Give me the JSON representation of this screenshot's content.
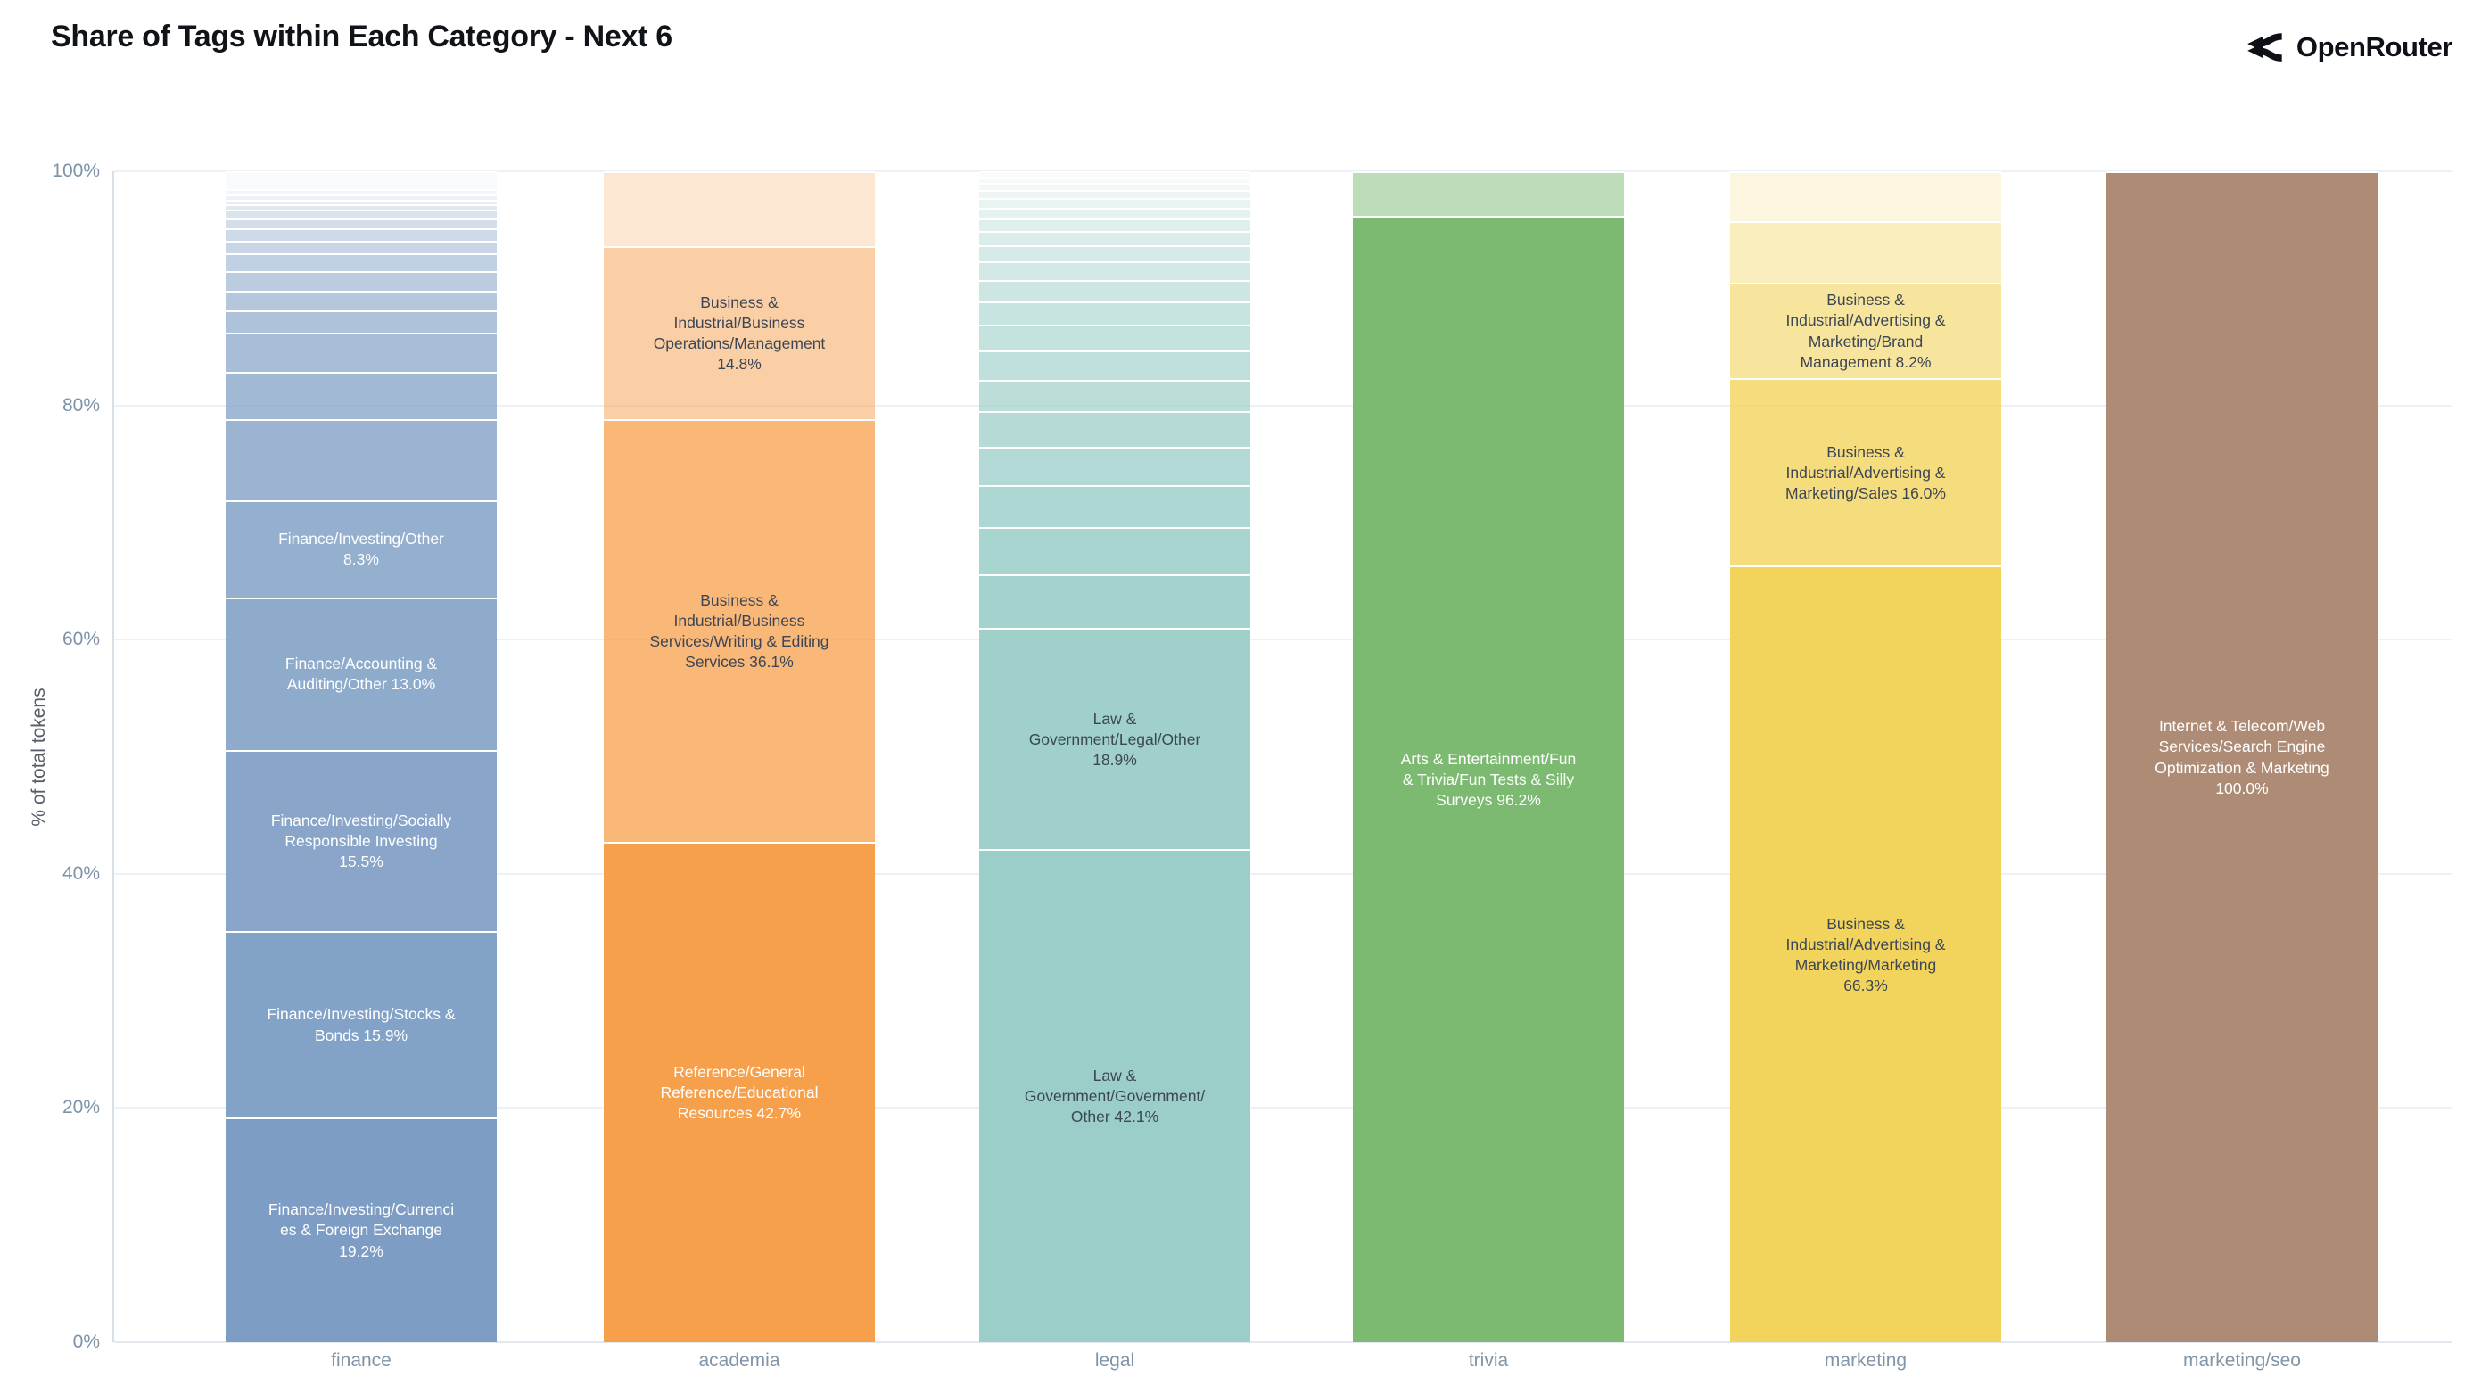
{
  "header": {
    "title": "Share of Tags within Each Category - Next 6",
    "brand": "OpenRouter"
  },
  "chart_data": {
    "type": "bar",
    "variant": "stacked-percent-column",
    "title": "Share of Tags within Each Category - Next 6",
    "xlabel": "",
    "ylabel": "% of total tokens",
    "ylim": [
      0,
      100
    ],
    "yticks": [
      {
        "value": 0,
        "label": "0%"
      },
      {
        "value": 20,
        "label": "20%"
      },
      {
        "value": 40,
        "label": "40%"
      },
      {
        "value": 60,
        "label": "60%"
      },
      {
        "value": 80,
        "label": "80%"
      },
      {
        "value": 100,
        "label": "100%"
      }
    ],
    "grid": true,
    "legend": "none",
    "categories": [
      "finance",
      "academia",
      "legal",
      "trivia",
      "marketing",
      "marketing/seo"
    ],
    "bars": [
      {
        "category": "finance",
        "color": "#7d9dc4",
        "segments": [
          {
            "value": 19.2,
            "label": "Finance/Investing/Currencies & Foreign Exchange 19.2%",
            "label_color": "#ffffff"
          },
          {
            "value": 15.9,
            "label": "Finance/Investing/Stocks & Bonds 15.9%",
            "label_color": "#ffffff"
          },
          {
            "value": 15.5,
            "label": "Finance/Investing/Socially Responsible Investing 15.5%",
            "label_color": "#ffffff"
          },
          {
            "value": 13.0,
            "label": "Finance/Accounting & Auditing/Other 13.0%",
            "label_color": "#ffffff"
          },
          {
            "value": 8.3,
            "label": "Finance/Investing/Other 8.3%",
            "label_color": "#ffffff"
          },
          {
            "value": 6.9,
            "label": ""
          },
          {
            "value": 4.1,
            "label": ""
          },
          {
            "value": 3.3,
            "label": ""
          },
          {
            "value": 1.9,
            "label": ""
          },
          {
            "value": 1.7,
            "label": ""
          },
          {
            "value": 1.7,
            "label": ""
          },
          {
            "value": 1.5,
            "label": ""
          },
          {
            "value": 1.1,
            "label": ""
          },
          {
            "value": 1.0,
            "label": ""
          },
          {
            "value": 0.9,
            "label": ""
          },
          {
            "value": 0.7,
            "label": ""
          },
          {
            "value": 0.5,
            "label": ""
          },
          {
            "value": 0.4,
            "label": ""
          },
          {
            "value": 0.4,
            "label": ""
          },
          {
            "value": 0.5,
            "label": ""
          },
          {
            "value": 1.5,
            "label": ""
          }
        ]
      },
      {
        "category": "academia",
        "color": "#f7a04b",
        "segments": [
          {
            "value": 42.7,
            "label": "Reference/General Reference/Educational Resources 42.7%",
            "label_color": "#ffffff"
          },
          {
            "value": 36.1,
            "label": "Business & Industrial/Business Services/Writing & Editing Services 36.1%",
            "label_color": "#3c4655"
          },
          {
            "value": 14.8,
            "label": "Business & Industrial/Business Operations/Management 14.8%",
            "label_color": "#3c4655"
          },
          {
            "value": 6.4,
            "label": ""
          }
        ]
      },
      {
        "category": "legal",
        "color": "#9bcec8",
        "segments": [
          {
            "value": 42.1,
            "label": "Law & Government/Government/Other 42.1%",
            "label_color": "#3c4655"
          },
          {
            "value": 18.9,
            "label": "Law & Government/Legal/Other 18.9%",
            "label_color": "#3c4655"
          },
          {
            "value": 4.6,
            "label": ""
          },
          {
            "value": 4.0,
            "label": ""
          },
          {
            "value": 3.6,
            "label": ""
          },
          {
            "value": 3.3,
            "label": ""
          },
          {
            "value": 3.0,
            "label": ""
          },
          {
            "value": 2.7,
            "label": ""
          },
          {
            "value": 2.5,
            "label": ""
          },
          {
            "value": 2.2,
            "label": ""
          },
          {
            "value": 2.0,
            "label": ""
          },
          {
            "value": 1.8,
            "label": ""
          },
          {
            "value": 1.6,
            "label": ""
          },
          {
            "value": 1.4,
            "label": ""
          },
          {
            "value": 1.2,
            "label": ""
          },
          {
            "value": 1.1,
            "label": ""
          },
          {
            "value": 0.9,
            "label": ""
          },
          {
            "value": 0.8,
            "label": ""
          },
          {
            "value": 0.7,
            "label": ""
          },
          {
            "value": 0.6,
            "label": ""
          },
          {
            "value": 0.5,
            "label": ""
          },
          {
            "value": 0.5,
            "label": ""
          }
        ]
      },
      {
        "category": "trivia",
        "color": "#7cba71",
        "segments": [
          {
            "value": 96.2,
            "label": "Arts & Entertainment/Fun & Trivia/Fun Tests & Silly Surveys 96.2%",
            "label_color": "#ffffff"
          },
          {
            "value": 3.8,
            "label": ""
          }
        ]
      },
      {
        "category": "marketing",
        "color": "#f2d35c",
        "segments": [
          {
            "value": 66.3,
            "label": "Business & Industrial/Advertising & Marketing/Marketing 66.3%",
            "label_color": "#3c4655"
          },
          {
            "value": 16.0,
            "label": "Business & Industrial/Advertising & Marketing/Sales 16.0%",
            "label_color": "#3c4655"
          },
          {
            "value": 8.2,
            "label": "Business & Industrial/Advertising & Marketing/Brand Management 8.2%",
            "label_color": "#3c4655"
          },
          {
            "value": 5.2,
            "label": ""
          },
          {
            "value": 4.3,
            "label": ""
          }
        ]
      },
      {
        "category": "marketing/seo",
        "color": "#ae8b75",
        "segments": [
          {
            "value": 100.0,
            "label": "Internet & Telecom/Web Services/Search Engine Optimization & Marketing 100.0%",
            "label_color": "#ffffff"
          }
        ]
      }
    ]
  }
}
